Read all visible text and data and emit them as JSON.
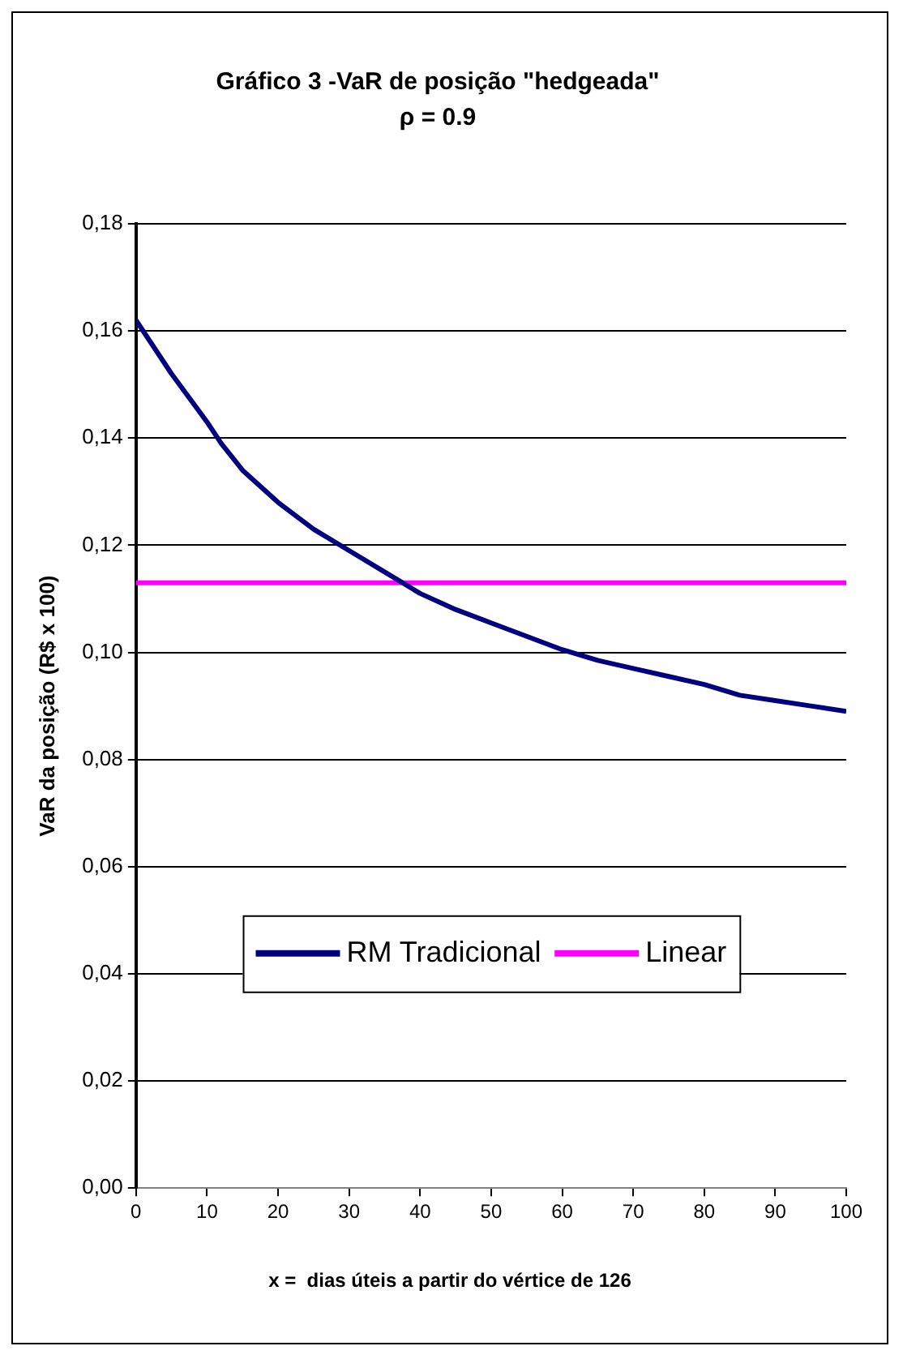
{
  "chart_data": {
    "type": "line",
    "title": "Gráfico 3 -VaR de posição \"hedgeada\"",
    "subtitle": "ρ = 0.9",
    "xlabel": "x =  dias úteis a partir do vértice de 126",
    "ylabel": "VaR da posição (R$ x 100)",
    "series": [
      {
        "name": "RM Tradicional",
        "color": "#000080",
        "x": [
          0,
          5,
          10,
          12,
          15,
          20,
          25,
          30,
          35,
          40,
          45,
          50,
          55,
          60,
          65,
          70,
          75,
          80,
          85,
          90,
          95,
          100
        ],
        "values": [
          0.162,
          0.152,
          0.143,
          0.139,
          0.134,
          0.128,
          0.123,
          0.119,
          0.115,
          0.111,
          0.108,
          0.1055,
          0.103,
          0.1005,
          0.0985,
          0.097,
          0.0955,
          0.094,
          0.092,
          0.091,
          0.09,
          0.089
        ]
      },
      {
        "name": "Linear",
        "color": "#ff00ff",
        "x": [
          0,
          100
        ],
        "values": [
          0.113,
          0.113
        ]
      }
    ],
    "xlim": [
      0,
      100
    ],
    "xticks": [
      0,
      10,
      20,
      30,
      40,
      50,
      60,
      70,
      80,
      90,
      100
    ],
    "ylim": [
      0,
      0.18
    ],
    "yticks": [
      {
        "value": 0,
        "label": "0,00"
      },
      {
        "value": 0.02,
        "label": "0,02"
      },
      {
        "value": 0.04,
        "label": "0,04"
      },
      {
        "value": 0.06,
        "label": "0,06"
      },
      {
        "value": 0.08,
        "label": "0,08"
      },
      {
        "value": 0.1,
        "label": "0,10"
      },
      {
        "value": 0.12,
        "label": "0,12"
      },
      {
        "value": 0.14,
        "label": "0,14"
      },
      {
        "value": 0.16,
        "label": "0,16"
      },
      {
        "value": 0.18,
        "label": "0,18"
      }
    ],
    "grid": "y",
    "legend": "bottom",
    "marker": "none",
    "line_style": "solid"
  }
}
